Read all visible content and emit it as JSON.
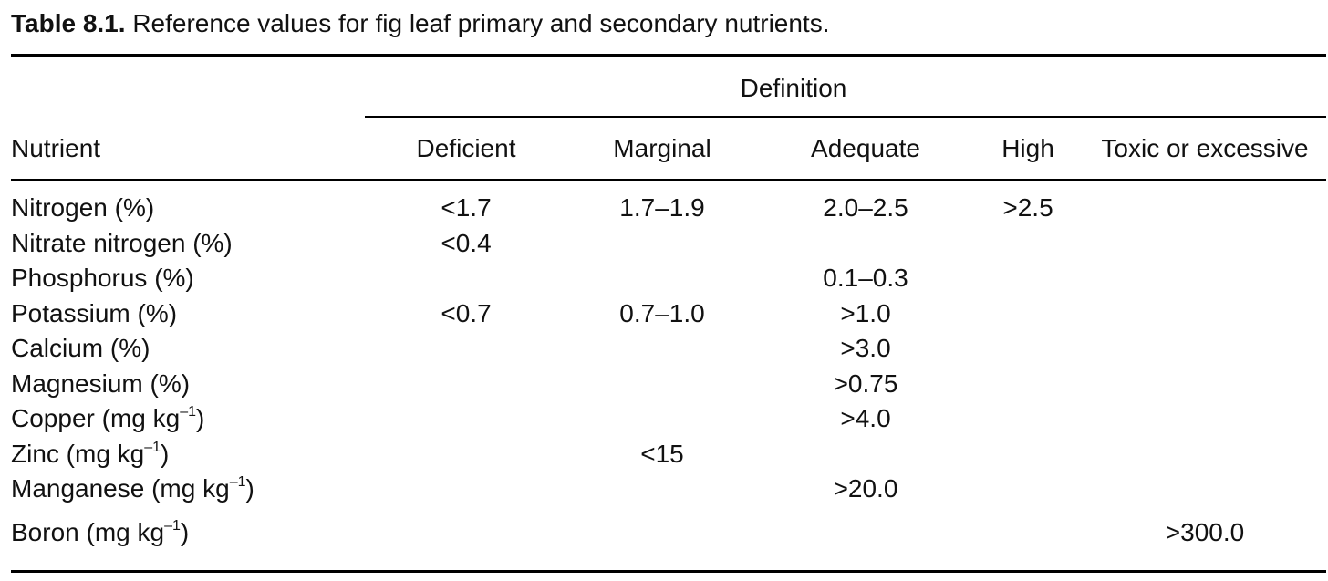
{
  "caption": {
    "label": "Table 8.1.",
    "text": "Reference values for fig leaf primary and secondary nutrients."
  },
  "header": {
    "group": "Definition",
    "nutrient": "Nutrient",
    "columns": [
      "Deficient",
      "Marginal",
      "Adequate",
      "High",
      "Toxic or excessive"
    ]
  },
  "rows": [
    {
      "name": "Nitrogen (%)",
      "deficient": "<1.7",
      "marginal": "1.7–1.9",
      "adequate": "2.0–2.5",
      "high": ">2.5",
      "toxic": ""
    },
    {
      "name": "Nitrate nitrogen (%)",
      "deficient": "<0.4",
      "marginal": "",
      "adequate": "",
      "high": "",
      "toxic": ""
    },
    {
      "name": "Phosphorus (%)",
      "deficient": "",
      "marginal": "",
      "adequate": "0.1–0.3",
      "high": "",
      "toxic": ""
    },
    {
      "name": "Potassium (%)",
      "deficient": "<0.7",
      "marginal": "0.7–1.0",
      "adequate": ">1.0",
      "high": "",
      "toxic": ""
    },
    {
      "name": "Calcium (%)",
      "deficient": "",
      "marginal": "",
      "adequate": ">3.0",
      "high": "",
      "toxic": ""
    },
    {
      "name": "Magnesium (%)",
      "deficient": "",
      "marginal": "",
      "adequate": ">0.75",
      "high": "",
      "toxic": ""
    },
    {
      "name": "Copper (mg kg",
      "unit_sup": "–1",
      "name_end": ")",
      "deficient": "",
      "marginal": "",
      "adequate": ">4.0",
      "high": "",
      "toxic": ""
    },
    {
      "name": "Zinc (mg kg",
      "unit_sup": "–1",
      "name_end": ")",
      "deficient": "",
      "marginal": "<15",
      "adequate": "",
      "high": "",
      "toxic": ""
    },
    {
      "name": "Manganese (mg kg",
      "unit_sup": "–1",
      "name_end": ")",
      "deficient": "",
      "marginal": "",
      "adequate": ">20.0",
      "high": "",
      "toxic": ""
    },
    {
      "name": "Boron (mg kg",
      "unit_sup": "–1",
      "name_end": ")",
      "deficient": "",
      "marginal": "",
      "adequate": "",
      "high": "",
      "toxic": ">300.0"
    }
  ]
}
